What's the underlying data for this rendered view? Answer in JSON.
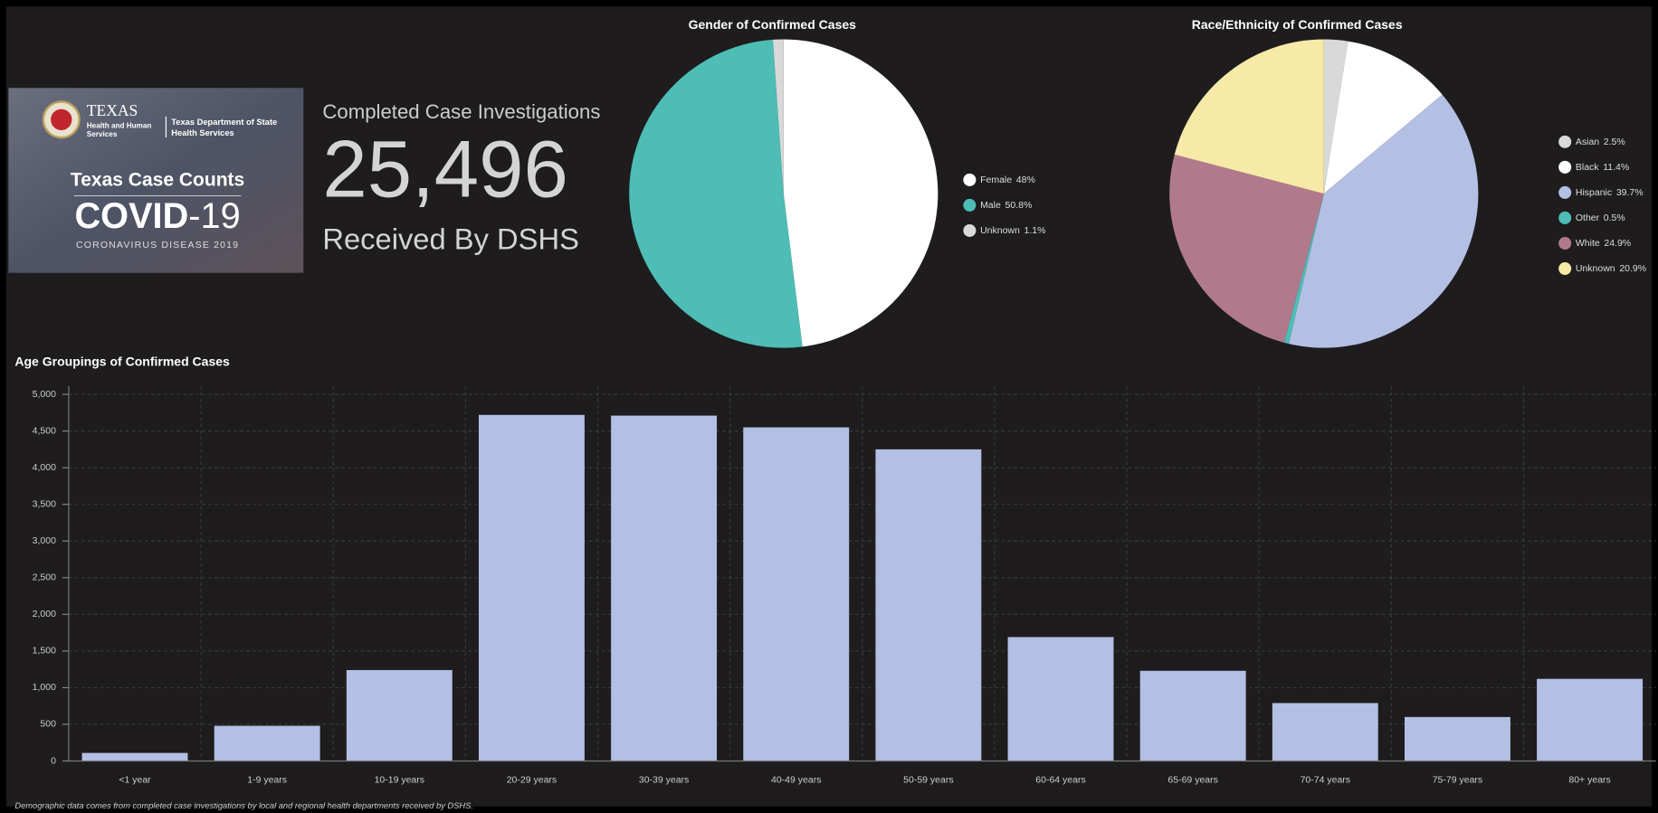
{
  "banner": {
    "agency": "TEXAS",
    "agency_lines": [
      "Health and Human",
      "Services"
    ],
    "dept_lines": [
      "Texas Department of State",
      "Health Services"
    ],
    "title": "Texas Case Counts",
    "covid": "COVID",
    "covid_suffix": "-19",
    "subtitle": "CORONAVIRUS DISEASE 2019"
  },
  "kpi": {
    "label": "Completed Case Investigations",
    "value": "25,496",
    "caption": "Received By DSHS"
  },
  "footnote": "Demographic data comes from completed case investigations by local and regional health departments received by DSHS.",
  "chart_data": [
    {
      "type": "pie",
      "title": "Gender of Confirmed Cases",
      "legend": "right",
      "categories": [
        "Female",
        "Male",
        "Unknown"
      ],
      "values": [
        48,
        50.8,
        1.1
      ],
      "value_labels": [
        "48%",
        "50.8%",
        "1.1%"
      ],
      "colors": [
        "#ffffff",
        "#4dbdb5",
        "#d9d9d9"
      ]
    },
    {
      "type": "pie",
      "title": "Race/Ethnicity of Confirmed Cases",
      "legend": "right",
      "categories": [
        "Asian",
        "Black",
        "Hispanic",
        "Other",
        "White",
        "Unknown"
      ],
      "values": [
        2.5,
        11.4,
        39.7,
        0.5,
        24.9,
        20.9
      ],
      "value_labels": [
        "2.5%",
        "11.4%",
        "39.7%",
        "0.5%",
        "24.9%",
        "20.9%"
      ],
      "colors": [
        "#d9d9d9",
        "#ffffff",
        "#b3bfe3",
        "#4dbdb5",
        "#b07a8c",
        "#f7eaa8"
      ]
    },
    {
      "type": "bar",
      "title": "Age Groupings of Confirmed Cases",
      "categories": [
        "<1 year",
        "1-9 years",
        "10-19 years",
        "20-29 years",
        "30-39 years",
        "40-49 years",
        "50-59 years",
        "60-64 years",
        "65-69 years",
        "70-74 years",
        "75-79 years",
        "80+ years"
      ],
      "values": [
        110,
        480,
        1240,
        4720,
        4710,
        4550,
        4250,
        1690,
        1230,
        790,
        600,
        1120
      ],
      "color": "#b3bfe3",
      "grid": true,
      "ylim": [
        0,
        5000
      ],
      "yticks": [
        0,
        500,
        {
          "value": 1000,
          "label": "1,000"
        },
        {
          "value": 1500,
          "label": "1,500"
        },
        {
          "value": 2000,
          "label": "2,000"
        },
        {
          "value": 2500,
          "label": "2,500"
        },
        {
          "value": 3000,
          "label": "3,000"
        },
        {
          "value": 3500,
          "label": "3,500"
        },
        {
          "value": 4000,
          "label": "4,000"
        },
        {
          "value": 4500,
          "label": "4,500"
        },
        {
          "value": 5000,
          "label": "5,000"
        }
      ]
    }
  ]
}
